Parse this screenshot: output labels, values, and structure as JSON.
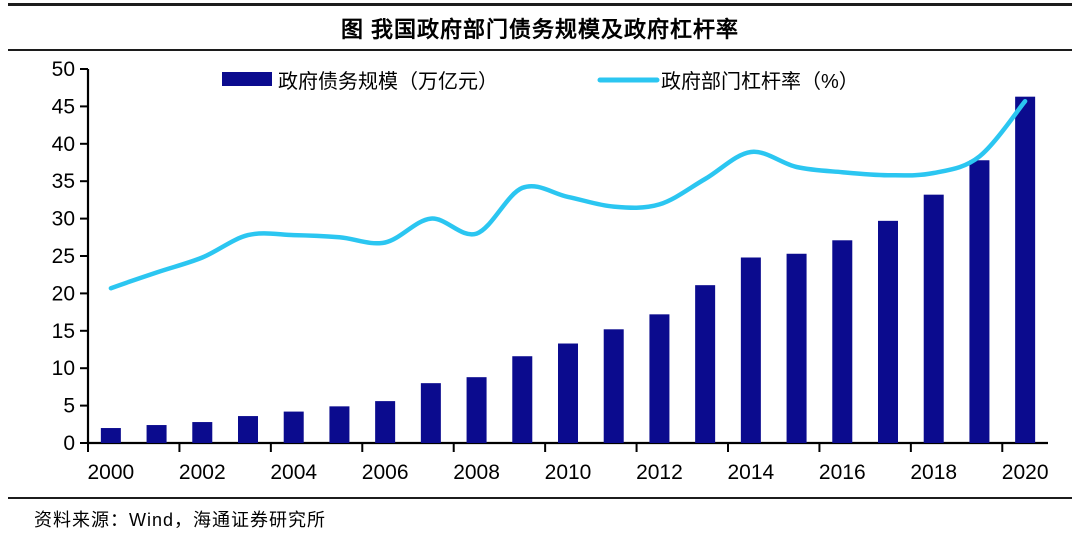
{
  "header": {
    "title": "图 我国政府部门债务规模及政府杠杆率"
  },
  "legend": {
    "bar_label": "政府债务规模（万亿元）",
    "line_label": "政府部门杠杆率（%）"
  },
  "footer": {
    "source": "资料来源：Wind，海通证券研究所"
  },
  "colors": {
    "bar": "#0B0B8E",
    "line": "#2BC6F1",
    "axis": "#000000",
    "text": "#000000",
    "rule": "#1c1c1c"
  },
  "chart_data": {
    "type": "bar+line",
    "categories": [
      "2000",
      "2001",
      "2002",
      "2003",
      "2004",
      "2005",
      "2006",
      "2007",
      "2008",
      "2009",
      "2010",
      "2011",
      "2012",
      "2013",
      "2014",
      "2015",
      "2016",
      "2017",
      "2018",
      "2019",
      "2020"
    ],
    "series": [
      {
        "name": "政府债务规模（万亿元）",
        "type": "bar",
        "color": "#0B0B8E",
        "values": [
          2.0,
          2.4,
          2.8,
          3.6,
          4.2,
          4.9,
          5.6,
          8.0,
          8.8,
          11.6,
          13.3,
          15.2,
          17.2,
          21.1,
          24.8,
          25.3,
          27.1,
          29.7,
          33.2,
          37.8,
          46.3
        ]
      },
      {
        "name": "政府部门杠杆率（%）",
        "type": "line",
        "color": "#2BC6F1",
        "values": [
          20.7,
          22.8,
          24.8,
          27.8,
          27.8,
          27.5,
          26.8,
          30.0,
          28.0,
          34.1,
          32.9,
          31.6,
          31.9,
          35.3,
          38.9,
          36.9,
          36.2,
          35.8,
          36.1,
          38.3,
          45.7
        ]
      }
    ],
    "ylim": [
      0,
      50
    ],
    "y_ticks": [
      0,
      5,
      10,
      15,
      20,
      25,
      30,
      35,
      40,
      45,
      50
    ],
    "x_tick_labels": [
      "2000",
      "2002",
      "2004",
      "2006",
      "2008",
      "2010",
      "2012",
      "2014",
      "2016",
      "2018",
      "2020"
    ],
    "grid": false,
    "legend_position": "top-inside"
  }
}
